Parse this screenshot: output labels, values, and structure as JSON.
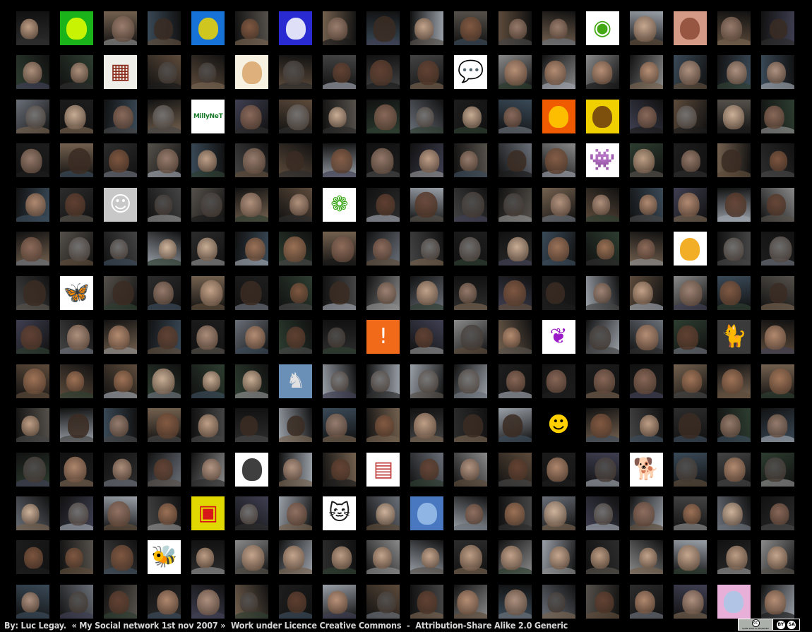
{
  "grid": {
    "rows": 14,
    "cols": 18,
    "subject": "profile photo",
    "palette": [
      "#d9b497",
      "#c99a7c",
      "#b07e5e",
      "#8d5f45",
      "#6a4534",
      "#e6c6aa",
      "#a88978",
      "#545454",
      "#7d7d7d",
      "#3a2c24",
      "#c5a28c",
      "#9a7462"
    ],
    "backgrounds": [
      "#2c2c2c",
      "#55504a",
      "#6a6f78",
      "#3a4a58",
      "#8a8a8a",
      "#444",
      "#5d4b3b",
      "#2d3d30",
      "#9aa0a8",
      "#1d1d1d",
      "#74614f",
      "#3f3f52"
    ],
    "specials": [
      {
        "row": 0,
        "col": 1,
        "kind": "art-neon",
        "bg": "#1ab31a",
        "accent": "#e8ff00"
      },
      {
        "row": 0,
        "col": 4,
        "kind": "art-pop",
        "bg": "#1672d6",
        "accent": "#f0d600"
      },
      {
        "row": 0,
        "col": 6,
        "kind": "sketch-blue",
        "bg": "#2a2ad2",
        "accent": "#ffffff"
      },
      {
        "row": 0,
        "col": 13,
        "kind": "lemming",
        "bg": "#ffffff",
        "accent": "#43a814"
      },
      {
        "row": 0,
        "col": 15,
        "kind": "tattoo",
        "bg": "#d49a86",
        "accent": "#8b4a36"
      },
      {
        "row": 1,
        "col": 2,
        "kind": "qr-art",
        "bg": "#f0eee8",
        "accent": "#8a2a1a"
      },
      {
        "row": 1,
        "col": 5,
        "kind": "cartoon-face",
        "bg": "#f7f1e2",
        "accent": "#d9a56a"
      },
      {
        "row": 1,
        "col": 10,
        "kind": "speech-bubble",
        "bg": "#ffffff",
        "accent": "#0a4fb0"
      },
      {
        "row": 2,
        "col": 4,
        "kind": "badge-shield",
        "bg": "#ffffff",
        "accent": "#1a7a2a",
        "text": "MillyNeT"
      },
      {
        "row": 2,
        "col": 12,
        "kind": "bright-orange",
        "bg": "#f05a00",
        "accent": "#ffd000"
      },
      {
        "row": 2,
        "col": 13,
        "kind": "bright-yellow",
        "bg": "#f0d000",
        "accent": "#6a3a10"
      },
      {
        "row": 3,
        "col": 13,
        "kind": "pacman-ghost",
        "bg": "#ffffff",
        "accent": "#e8061c"
      },
      {
        "row": 4,
        "col": 2,
        "kind": "smiley-square",
        "bg": "#c8c8c8",
        "accent": "#ffffff"
      },
      {
        "row": 4,
        "col": 7,
        "kind": "green-ring",
        "bg": "#ffffff",
        "accent": "#3aa818"
      },
      {
        "row": 5,
        "col": 15,
        "kind": "cartoon-yellow",
        "bg": "#ffffff",
        "accent": "#f0a000"
      },
      {
        "row": 6,
        "col": 1,
        "kind": "butterfly",
        "bg": "#ffffff",
        "accent": "#1478e0"
      },
      {
        "row": 7,
        "col": 8,
        "kind": "rss-figure",
        "bg": "#f06a1a",
        "accent": "#ffffff"
      },
      {
        "row": 7,
        "col": 12,
        "kind": "origami-bow",
        "bg": "#ffffff",
        "accent": "#9a1ac8"
      },
      {
        "row": 7,
        "col": 16,
        "kind": "black-cat",
        "bg": "#3a3a3a",
        "accent": "#60a0b0"
      },
      {
        "row": 8,
        "col": 6,
        "kind": "pegasus-statue",
        "bg": "#6a90b8",
        "accent": "#e0e0e0"
      },
      {
        "row": 9,
        "col": 12,
        "kind": "smiley-wink",
        "bg": "#000000",
        "accent": "#ffd000"
      },
      {
        "row": 10,
        "col": 5,
        "kind": "line-portrait",
        "bg": "#ffffff",
        "accent": "#1d1d1d"
      },
      {
        "row": 10,
        "col": 8,
        "kind": "photo-collage",
        "bg": "#ffffff",
        "accent": "#c04040"
      },
      {
        "row": 10,
        "col": 14,
        "kind": "french-bulldog",
        "bg": "#ffffff",
        "accent": "#c8c0b8"
      },
      {
        "row": 11,
        "col": 4,
        "kind": "warhol-grid",
        "bg": "#e0d800",
        "accent": "#d81818"
      },
      {
        "row": 11,
        "col": 7,
        "kind": "cat-drawing",
        "bg": "#ffffff",
        "accent": "#1d1d1d"
      },
      {
        "row": 11,
        "col": 9,
        "kind": "blue-tint",
        "bg": "#4a78c0",
        "accent": "#9ac0ea"
      },
      {
        "row": 12,
        "col": 3,
        "kind": "bee-cartoon",
        "bg": "#ffffff",
        "accent": "#f0b800"
      },
      {
        "row": 13,
        "col": 16,
        "kind": "pink-sky",
        "bg": "#e8b0d8",
        "accent": "#a8c8e8"
      }
    ]
  },
  "footer": {
    "byline": "By: Luc Legay.",
    "title": "« My Social network 1st nov 2007 »",
    "licence": "Work under Licence Creative Commons",
    "separator": "-",
    "licence_name": "Attribution-Share Alike 2.0 Generic"
  },
  "badge": {
    "logo_text": "cc",
    "rights_text": "SOME RIGHTS RESERVED",
    "by_text": "BY",
    "sa_text": "SA"
  }
}
